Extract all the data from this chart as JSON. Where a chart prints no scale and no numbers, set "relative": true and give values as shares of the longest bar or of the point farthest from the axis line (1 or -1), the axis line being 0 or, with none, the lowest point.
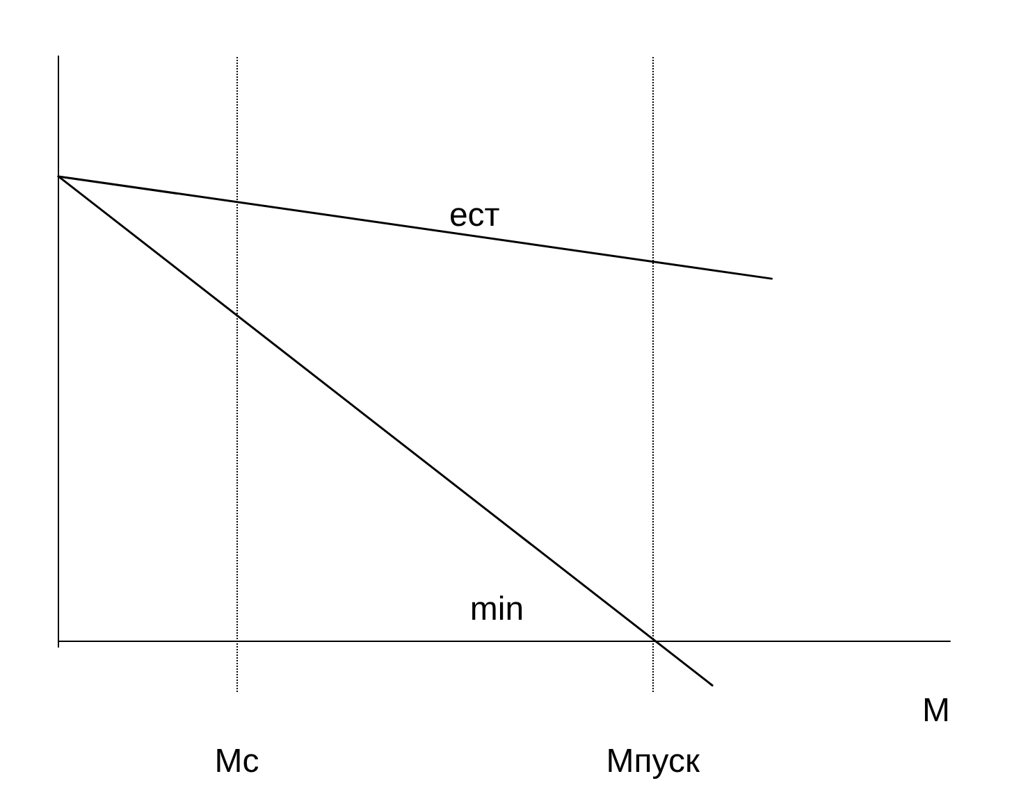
{
  "chart_data": {
    "type": "line",
    "relative": true,
    "xlabel": "M",
    "tick_labels": "x",
    "grid": false,
    "legend": false,
    "marker": "none",
    "line_style": "solid",
    "categories": [
      null,
      null,
      null,
      "Mc",
      null,
      null,
      null,
      null,
      null,
      null,
      "Мпуск",
      null,
      null,
      null,
      null,
      null
    ],
    "series": [
      {
        "name": "ест",
        "color": "#000000",
        "values": [
          1,
          null,
          null,
          null,
          null,
          null,
          null,
          null,
          null,
          null,
          null,
          null,
          0.78,
          null,
          null,
          null
        ]
      },
      {
        "name": "min",
        "color": "#000000",
        "values": [
          1,
          null,
          null,
          null,
          null,
          null,
          null,
          null,
          null,
          null,
          null,
          -0.095,
          null,
          null,
          null,
          null
        ]
      }
    ],
    "ref_lines": [
      {
        "axis": "x",
        "value": "Mc",
        "line_style": "dotted",
        "color": "#000000"
      },
      {
        "axis": "x",
        "value": "Мпуск",
        "line_style": "dotted",
        "color": "#000000"
      }
    ]
  }
}
